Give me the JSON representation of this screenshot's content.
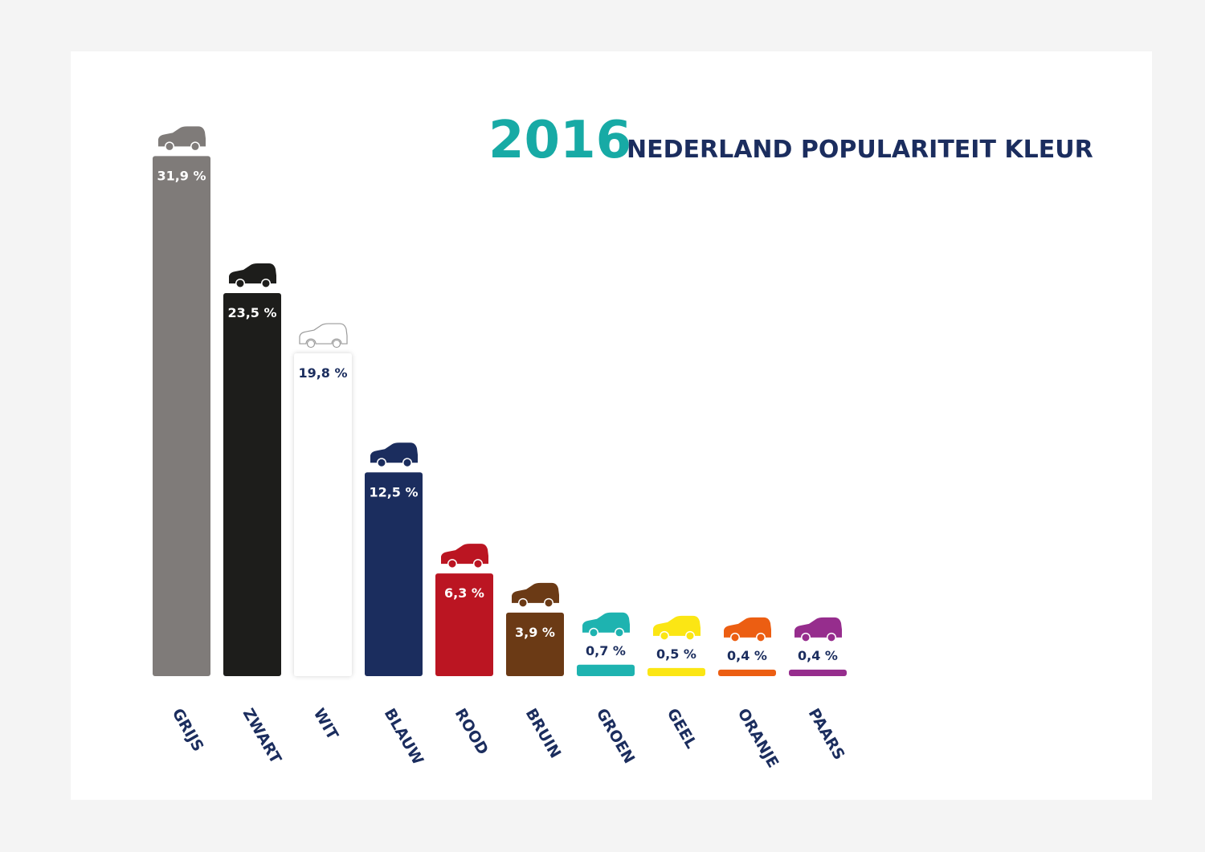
{
  "chart_data": {
    "type": "bar",
    "title_year": "2016",
    "title": "NEDERLAND POPULARITEIT KLEUR",
    "categories": [
      "GRIJS",
      "ZWART",
      "WIT",
      "BLAUW",
      "ROOD",
      "BRUIN",
      "GROEN",
      "GEEL",
      "ORANJE",
      "PAARS"
    ],
    "values": [
      31.9,
      23.5,
      19.8,
      12.5,
      6.3,
      3.9,
      0.7,
      0.5,
      0.4,
      0.4
    ],
    "value_labels": [
      "31,9 %",
      "23,5 %",
      "19,8 %",
      "12,5 %",
      "6,3 %",
      "3,9 %",
      "0,7 %",
      "0,5 %",
      "0,4 %",
      "0,4 %"
    ],
    "colors": [
      "#7f7b79",
      "#1d1d1b",
      "#ffffff",
      "#1b2d5e",
      "#bb1522",
      "#6b3a15",
      "#1eb3b0",
      "#fbe614",
      "#ec5e12",
      "#962d8d"
    ],
    "xlabel": "",
    "ylabel": "",
    "grid": false,
    "accent_title_color": "#17aaa5",
    "title_color": "#1b2d5e"
  }
}
